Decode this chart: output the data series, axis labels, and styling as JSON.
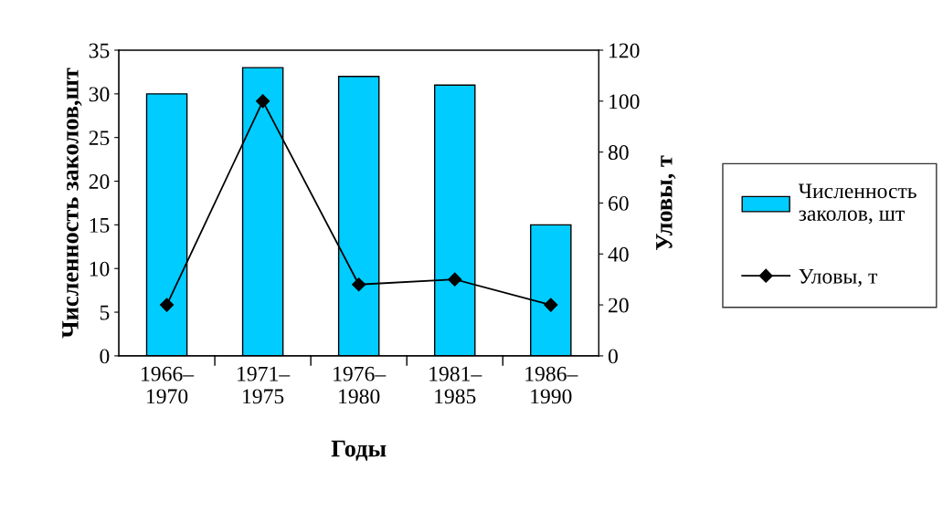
{
  "chart_data": {
    "type": "bar",
    "xlabel": "Годы",
    "ylabel": "Численность заколов,шт",
    "y2label": "Уловы, т",
    "categories": [
      "1966–\n1970",
      "1971–\n1975",
      "1976–\n1980",
      "1981–\n1985",
      "1986–\n1990"
    ],
    "series": [
      {
        "name": "Численность заколов, шт",
        "color": "#00ccff",
        "values": [
          30,
          33,
          32,
          31,
          15
        ]
      },
      {
        "name": "Уловы, т",
        "type": "line",
        "axis": "y2",
        "color": "#000000",
        "marker": "diamond",
        "values": [
          20,
          100,
          28,
          30,
          20
        ]
      }
    ],
    "ylim": [
      0,
      35
    ],
    "yticks": [
      0,
      5,
      10,
      15,
      20,
      25,
      30,
      35
    ],
    "y2lim": [
      0,
      120
    ],
    "y2ticks": [
      0,
      20,
      40,
      60,
      80,
      100,
      120
    ],
    "grid": false,
    "legend": "right"
  }
}
